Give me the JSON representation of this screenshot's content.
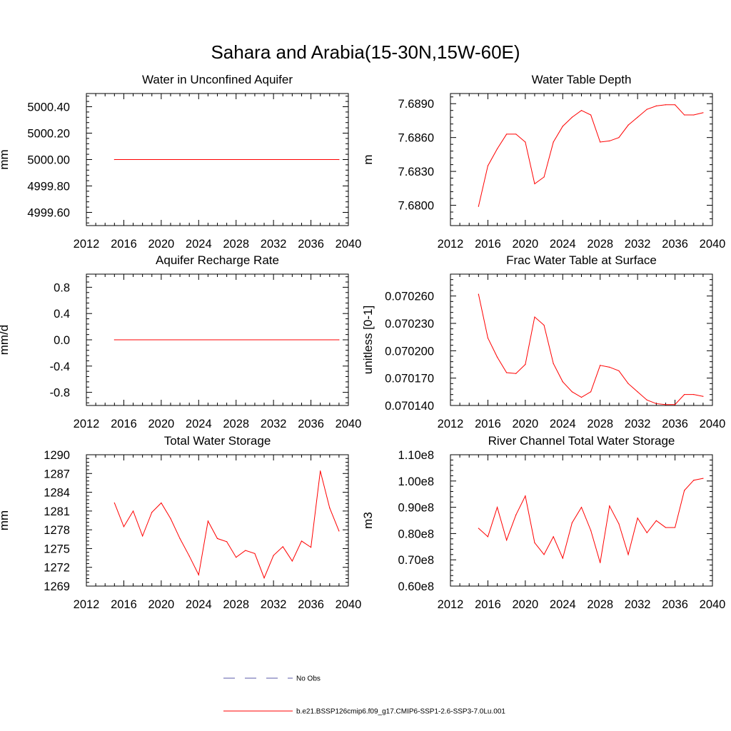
{
  "figure": {
    "title": "Sahara and Arabia(15-30N,15W-60E)"
  },
  "legend": {
    "entries": [
      {
        "label": "No Obs",
        "style": "dashed",
        "color": "#5a5aa8"
      },
      {
        "label": "b.e21.BSSP126cmip6.f09_g17.CMIP6-SSP1-2.6-SSP3-7.0Lu.001",
        "style": "solid",
        "color": "#ff0000"
      }
    ]
  },
  "chart_data": [
    {
      "type": "line",
      "title": "Water in Unconfined Aquifer",
      "ylabel": "mm",
      "xlim": [
        2012,
        2040
      ],
      "xticks": [
        2012,
        2016,
        2020,
        2024,
        2028,
        2032,
        2036,
        2040
      ],
      "ylim": [
        4999.5,
        5000.5
      ],
      "yticks": [
        4999.6,
        4999.8,
        5000.0,
        5000.2,
        5000.4
      ],
      "ytick_labels": [
        "4999.60",
        "4999.80",
        "5000.00",
        "5000.20",
        "5000.40"
      ],
      "series_color": "#ff0000",
      "x": [
        2015,
        2039
      ],
      "y": [
        5000.0,
        5000.0
      ]
    },
    {
      "type": "line",
      "title": "Water Table Depth",
      "ylabel": "m",
      "xlim": [
        2012,
        2040
      ],
      "xticks": [
        2012,
        2016,
        2020,
        2024,
        2028,
        2032,
        2036,
        2040
      ],
      "ylim": [
        7.6782,
        7.6899
      ],
      "yticks": [
        7.68,
        7.683,
        7.686,
        7.689
      ],
      "ytick_labels": [
        "7.6800",
        "7.6830",
        "7.6860",
        "7.6890"
      ],
      "series_color": "#ff0000",
      "x": [
        2015,
        2016,
        2017,
        2018,
        2019,
        2020,
        2021,
        2022,
        2023,
        2024,
        2025,
        2026,
        2027,
        2028,
        2029,
        2030,
        2031,
        2032,
        2033,
        2034,
        2035,
        2036,
        2037,
        2038,
        2039
      ],
      "y": [
        7.6799,
        7.6835,
        7.685,
        7.6863,
        7.6863,
        7.6856,
        7.6819,
        7.6825,
        7.6856,
        7.687,
        7.6878,
        7.6884,
        7.688,
        7.6856,
        7.6857,
        7.686,
        7.6871,
        7.6878,
        7.6885,
        7.6888,
        7.6889,
        7.6889,
        7.688,
        7.688,
        7.6882
      ]
    },
    {
      "type": "line",
      "title": "Aquifer Recharge Rate",
      "ylabel": "mm/d",
      "xlim": [
        2012,
        2040
      ],
      "xticks": [
        2012,
        2016,
        2020,
        2024,
        2028,
        2032,
        2036,
        2040
      ],
      "ylim": [
        -1.0,
        1.0
      ],
      "yticks": [
        -0.8,
        -0.4,
        0.0,
        0.4,
        0.8
      ],
      "ytick_labels": [
        "-0.8",
        "-0.4",
        "0.0",
        "0.4",
        "0.8"
      ],
      "series_color": "#ff0000",
      "x": [
        2015,
        2039
      ],
      "y": [
        0.0,
        0.0
      ]
    },
    {
      "type": "line",
      "title": "Frac Water Table at Surface",
      "ylabel": "unitless [0-1]",
      "xlim": [
        2012,
        2040
      ],
      "xticks": [
        2012,
        2016,
        2020,
        2024,
        2028,
        2032,
        2036,
        2040
      ],
      "ylim": [
        0.07014,
        0.070284
      ],
      "yticks": [
        0.07014,
        0.07017,
        0.0702,
        0.07023,
        0.07026
      ],
      "ytick_labels": [
        "0.070140",
        "0.070170",
        "0.070200",
        "0.070230",
        "0.070260"
      ],
      "series_color": "#ff0000",
      "x": [
        2015,
        2016,
        2017,
        2018,
        2019,
        2020,
        2021,
        2022,
        2023,
        2024,
        2025,
        2026,
        2027,
        2028,
        2029,
        2030,
        2031,
        2032,
        2033,
        2034,
        2035,
        2036,
        2037,
        2038,
        2039
      ],
      "y": [
        0.070262,
        0.070214,
        0.070193,
        0.070176,
        0.070175,
        0.070185,
        0.070237,
        0.070228,
        0.070186,
        0.070166,
        0.070155,
        0.070149,
        0.070155,
        0.070184,
        0.070182,
        0.070178,
        0.070164,
        0.070155,
        0.070146,
        0.070142,
        0.070141,
        0.070141,
        0.070152,
        0.070152,
        0.07015
      ]
    },
    {
      "type": "line",
      "title": "Total Water Storage",
      "ylabel": "mm",
      "xlim": [
        2012,
        2040
      ],
      "xticks": [
        2012,
        2016,
        2020,
        2024,
        2028,
        2032,
        2036,
        2040
      ],
      "ylim": [
        1269,
        1290
      ],
      "yticks": [
        1269,
        1272,
        1275,
        1278,
        1281,
        1284,
        1287,
        1290
      ],
      "ytick_labels": [
        "1269",
        "1272",
        "1275",
        "1278",
        "1281",
        "1284",
        "1287",
        "1290"
      ],
      "series_color": "#ff0000",
      "x": [
        2015,
        2016,
        2017,
        2018,
        2019,
        2020,
        2021,
        2022,
        2023,
        2024,
        2025,
        2026,
        2027,
        2028,
        2029,
        2030,
        2031,
        2032,
        2033,
        2034,
        2035,
        2036,
        2037,
        2038,
        2039
      ],
      "y": [
        1282.3,
        1278.5,
        1281.0,
        1277.0,
        1280.8,
        1282.3,
        1279.8,
        1276.6,
        1273.8,
        1270.8,
        1279.4,
        1276.6,
        1276.1,
        1273.6,
        1274.7,
        1274.2,
        1270.3,
        1273.9,
        1275.3,
        1273.0,
        1276.2,
        1275.2,
        1287.4,
        1281.5,
        1277.8
      ]
    },
    {
      "type": "line",
      "title": "River Channel Total Water Storage",
      "ylabel": "m3",
      "xlim": [
        2012,
        2040
      ],
      "xticks": [
        2012,
        2016,
        2020,
        2024,
        2028,
        2032,
        2036,
        2040
      ],
      "ylim": [
        60000000,
        110000000
      ],
      "yticks": [
        60000000,
        70000000,
        80000000,
        90000000,
        100000000,
        110000000
      ],
      "ytick_labels": [
        "0.60e8",
        "0.70e8",
        "0.80e8",
        "0.90e8",
        "1.00e8",
        "1.10e8"
      ],
      "series_color": "#ff0000",
      "x": [
        2015,
        2016,
        2017,
        2018,
        2019,
        2020,
        2021,
        2022,
        2023,
        2024,
        2025,
        2026,
        2027,
        2028,
        2029,
        2030,
        2031,
        2032,
        2033,
        2034,
        2035,
        2036,
        2037,
        2038,
        2039
      ],
      "y": [
        82000000,
        78800000,
        90000000,
        77500000,
        87100000,
        94300000,
        76500000,
        72000000,
        78800000,
        70600000,
        84100000,
        90000000,
        81200000,
        68900000,
        90500000,
        83700000,
        72000000,
        85900000,
        80300000,
        84900000,
        82300000,
        82300000,
        96400000,
        100300000,
        101000000
      ]
    }
  ]
}
